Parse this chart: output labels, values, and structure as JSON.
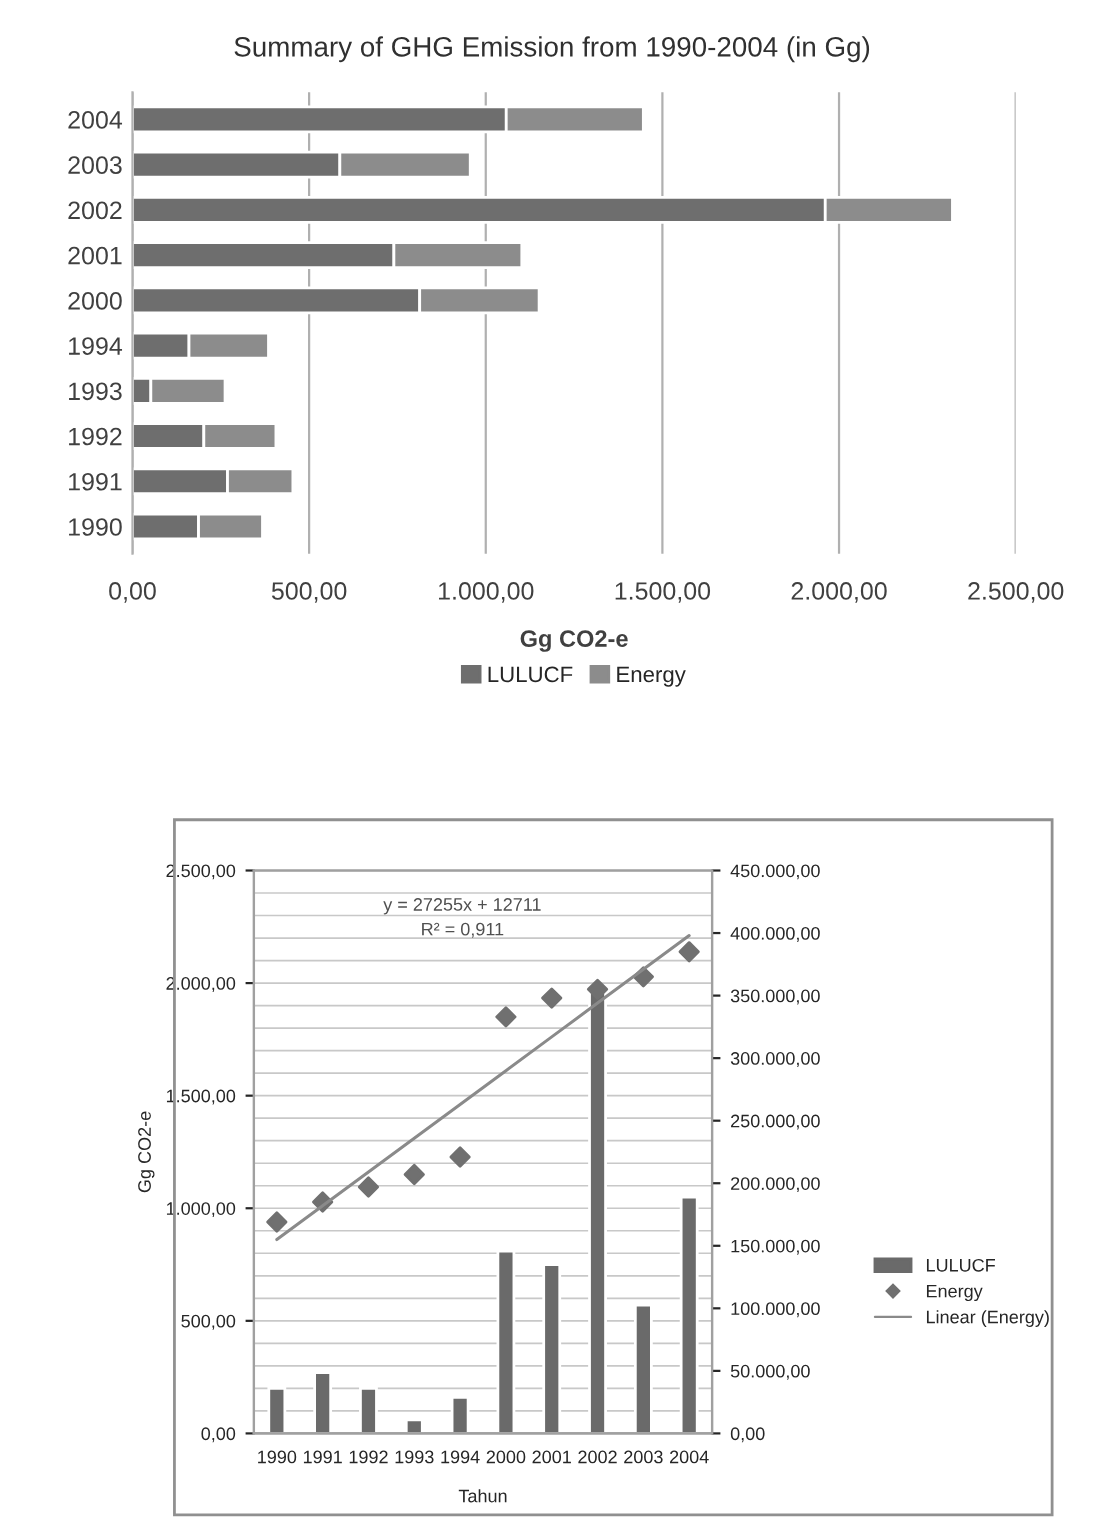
{
  "chart_data": [
    {
      "type": "bar",
      "title": "Summary of GHG Emission from 1990-2004 (in Gg)",
      "xlabel": "Gg CO2-e",
      "orientation": "horizontal",
      "stacked": true,
      "categories": [
        "2004",
        "2003",
        "2002",
        "2001",
        "2000",
        "1994",
        "1993",
        "1992",
        "1991",
        "1990"
      ],
      "series": [
        {
          "name": "LULUCF",
          "color": "#6e6e6e",
          "values": [
            1058,
            587,
            1961,
            740,
            813,
            160,
            52,
            202,
            269,
            187
          ]
        },
        {
          "name": "Energy",
          "color": "#8c8c8c",
          "values": [
            388,
            369,
            360,
            362,
            338,
            225,
            210,
            204,
            185,
            181
          ]
        }
      ],
      "xlim": [
        0,
        2500
      ],
      "xticks": [
        {
          "value": 0,
          "label": "0,00"
        },
        {
          "value": 500,
          "label": "500,00"
        },
        {
          "value": 1000,
          "label": "1.000,00"
        },
        {
          "value": 1500,
          "label": "1.500,00"
        },
        {
          "value": 2000,
          "label": "2.000,00"
        },
        {
          "value": 2500,
          "label": "2.500,00"
        }
      ],
      "grid": "x",
      "legend": "bottom"
    },
    {
      "type": "bar",
      "xlabel": "Tahun",
      "ylabel": "Gg CO2-e",
      "categories": [
        "1990",
        "1991",
        "1992",
        "1993",
        "1994",
        "2000",
        "2001",
        "2002",
        "2003",
        "2004"
      ],
      "series": [
        {
          "name": "LULUCF",
          "color": "#6a6a6a",
          "values": [
            200,
            270,
            200,
            60,
            160,
            810,
            750,
            1960,
            570,
            1050
          ]
        },
        {
          "name": "Energy",
          "type": "scatter",
          "axis": "y2",
          "marker": "diamond",
          "color": "#707070",
          "values": [
            169000,
            185000,
            197000,
            207000,
            221000,
            333000,
            348000,
            355000,
            365000,
            385000
          ]
        },
        {
          "name": "Linear (Energy)",
          "type": "line",
          "axis": "y2",
          "color": "#8a8a8a",
          "values": [
            155000,
            182000,
            209000,
            236000,
            263000,
            290000,
            317000,
            344000,
            371000,
            398000
          ]
        }
      ],
      "ylim": [
        0,
        2500
      ],
      "yticks": [
        {
          "value": 0,
          "label": "0,00"
        },
        {
          "value": 500,
          "label": "500,00"
        },
        {
          "value": 1000,
          "label": "1.000,00"
        },
        {
          "value": 1500,
          "label": "1.500,00"
        },
        {
          "value": 2000,
          "label": "2.000,00"
        },
        {
          "value": 2500,
          "label": "2.500,00"
        }
      ],
      "y2lim": [
        0,
        450000
      ],
      "y2ticks": [
        {
          "value": 0,
          "label": "0,00"
        },
        {
          "value": 50000,
          "label": "50.000,00"
        },
        {
          "value": 100000,
          "label": "100.000,00"
        },
        {
          "value": 150000,
          "label": "150.000,00"
        },
        {
          "value": 200000,
          "label": "200.000,00"
        },
        {
          "value": 250000,
          "label": "250.000,00"
        },
        {
          "value": 300000,
          "label": "300.000,00"
        },
        {
          "value": 350000,
          "label": "350.000,00"
        },
        {
          "value": 400000,
          "label": "400.000,00"
        },
        {
          "value": 450000,
          "label": "450.000,00"
        }
      ],
      "annotations": [
        "y = 27255x + 12711\nR² = 0,911"
      ],
      "grid": true,
      "legend": "right"
    }
  ]
}
